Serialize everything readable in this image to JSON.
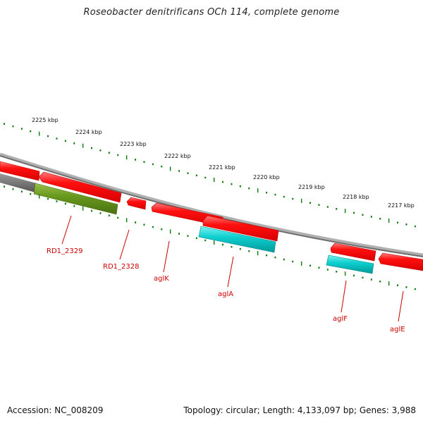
{
  "title": "Roseobacter denitrificans OCh 114, complete genome",
  "footer": {
    "accession": "Accession: NC_008209",
    "summary": "Topology: circular; Length: 4,133,097 bp; Genes: 3,988"
  },
  "ruler_labels": [
    "2225 kbp",
    "2224 kbp",
    "2223 kbp",
    "2222 kbp",
    "2221 kbp",
    "2220 kbp",
    "2219 kbp",
    "2218 kbp",
    "2217 kbp"
  ],
  "gene_labels": [
    "RD1_2329",
    "RD1_2328",
    "aglK",
    "aglA",
    "aglF",
    "aglE"
  ],
  "colors": {
    "cds": "#ff0000",
    "cds_light": "#ff7070",
    "cds_dark": "#c00000",
    "rna_cyan": "#00c8c8",
    "cog_green": "#6a9a1f",
    "ruler": "#0a7a0a",
    "backbone": "#7a7a7a",
    "label": "#cc0000"
  }
}
